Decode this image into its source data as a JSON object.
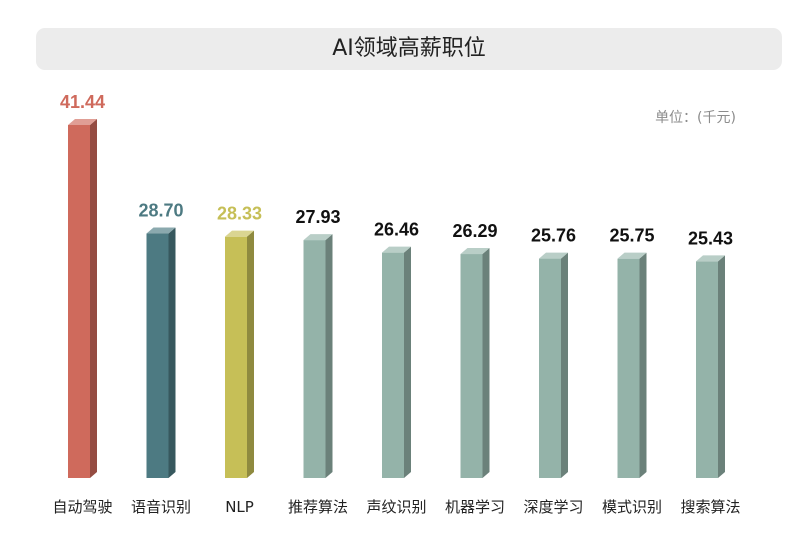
{
  "header": {
    "title": "AI领域高薪职位"
  },
  "unit_label": "单位：(千元)",
  "chart_data": {
    "type": "bar",
    "title": "AI领域高薪职位",
    "ylabel": "单位：(千元)",
    "ylim": [
      0,
      42
    ],
    "grid": false,
    "categories": [
      "自动驾驶",
      "语音识别",
      "NLP",
      "推荐算法",
      "声纹识别",
      "机器学习",
      "深度学习",
      "模式识别",
      "搜索算法"
    ],
    "values": [
      41.44,
      28.7,
      28.33,
      27.93,
      26.46,
      26.29,
      25.76,
      25.75,
      25.43
    ],
    "value_labels": [
      "41.44",
      "28.70",
      "28.33",
      "27.93",
      "26.46",
      "26.29",
      "25.76",
      "25.75",
      "25.43"
    ],
    "colors": [
      "#cf6a5c",
      "#4d7a82",
      "#c6bf57",
      "#94b3a9",
      "#94b3a9",
      "#94b3a9",
      "#94b3a9",
      "#94b3a9",
      "#94b3a9"
    ],
    "label_colors": [
      "#cf6a5c",
      "#4d7a82",
      "#c6bf57",
      "#111111",
      "#111111",
      "#111111",
      "#111111",
      "#111111",
      "#111111"
    ]
  }
}
